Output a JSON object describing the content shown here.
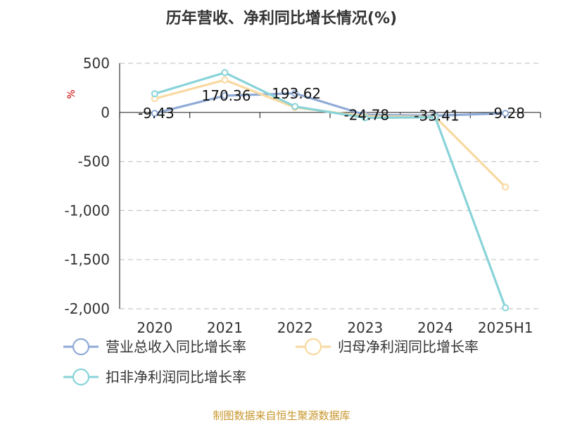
{
  "chart_data": {
    "type": "line",
    "title": "历年营收、净利同比增长情况(%)",
    "unit_label": "%",
    "categories": [
      "2020",
      "2021",
      "2022",
      "2023",
      "2024",
      "2025H1"
    ],
    "ylim": [
      -2000,
      500
    ],
    "yticks": [
      500,
      0,
      -500,
      -1000,
      -1500,
      -2000
    ],
    "ytick_labels": [
      "500",
      "0",
      "-500",
      "-1,000",
      "-1,500",
      "-2,000"
    ],
    "grid": true,
    "legend_position": "bottom-left",
    "series": [
      {
        "name": "营业总收入同比增长率",
        "color": "#8faad6",
        "values": [
          -9.43,
          170.36,
          193.62,
          -24.78,
          -33.41,
          -9.28
        ],
        "labels": [
          "-9.43",
          "170.36",
          "193.62",
          "-24.78",
          "-33.41",
          "-9.28"
        ]
      },
      {
        "name": "归母净利润同比增长率",
        "color": "#f8d9a0",
        "values": [
          140,
          330,
          50,
          -40,
          -45,
          -760
        ]
      },
      {
        "name": "扣非净利润同比增长率",
        "color": "#88d3d8",
        "values": [
          190,
          405,
          60,
          -55,
          -50,
          -1990
        ]
      }
    ]
  },
  "source_text": "制图数据来自恒生聚源数据库"
}
